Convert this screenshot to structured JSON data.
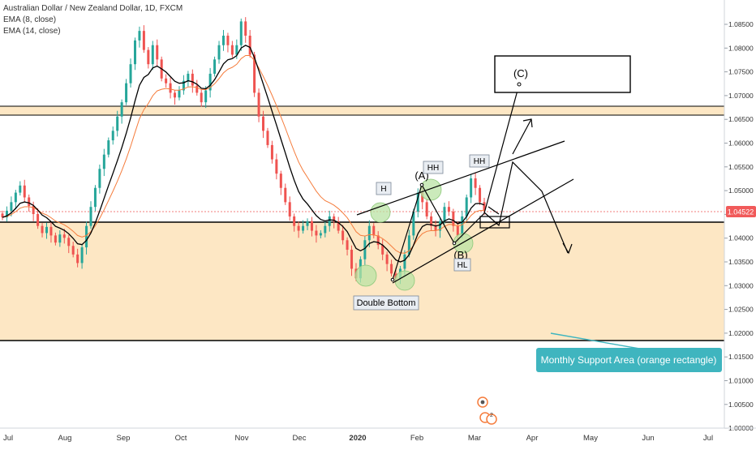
{
  "header": {
    "title": "Australian Dollar / New Zealand Dollar, 1D, FXCM",
    "indicators": [
      "EMA (8, close)",
      "EMA (14, close)"
    ]
  },
  "colors": {
    "bull": "#26a69a",
    "bear": "#ef5350",
    "ema8": "#000000",
    "ema14": "#f57c3c",
    "zone_fill": "#fde7c4",
    "price_badge": "#f15a5a",
    "callout": "#3fb5bf",
    "highlight_green": "#b9e3a4"
  },
  "chart_data": {
    "type": "candlestick",
    "y_ticks": [
      "1.08500",
      "1.08000",
      "1.07500",
      "1.07000",
      "1.06500",
      "1.06000",
      "1.05500",
      "1.05000",
      "1.04500",
      "1.04000",
      "1.03500",
      "1.03000",
      "1.02500",
      "1.02000",
      "1.01500",
      "1.01000",
      "1.00500",
      "1.00000"
    ],
    "x_ticks": [
      "Jul",
      "Aug",
      "Sep",
      "Oct",
      "Nov",
      "Dec",
      "2020",
      "Feb",
      "Mar",
      "Apr",
      "May",
      "Jun",
      "Jul"
    ],
    "ylim": [
      0.9995,
      1.0895
    ],
    "last_price": "1.04522",
    "zones": [
      {
        "name": "resistance-band",
        "from": 1.0655,
        "to": 1.067
      },
      {
        "name": "monthly-support-area",
        "from": 1.0181,
        "to": 1.0425
      }
    ],
    "horizontal_lines": [
      1.0181,
      1.0425,
      1.0655,
      1.067
    ],
    "labels": {
      "double_bottom": "Double Bottom",
      "h": "H",
      "hh1": "HH",
      "hh2": "HH",
      "hl": "HL",
      "wave_a": "(A)",
      "wave_b": "(B)",
      "wave_c": "(C)",
      "callout": "Monthly Support Area (orange rectangle)"
    },
    "daily_closes": [
      1.0438,
      1.0452,
      1.047,
      1.049,
      1.0505,
      1.048,
      1.0462,
      1.0445,
      1.042,
      1.0405,
      1.0418,
      1.04,
      1.0385,
      1.0402,
      1.0395,
      1.0378,
      1.036,
      1.0342,
      1.0375,
      1.042,
      1.046,
      1.05,
      1.054,
      1.057,
      1.06,
      1.062,
      1.065,
      1.068,
      1.072,
      1.076,
      1.081,
      1.083,
      1.079,
      1.076,
      1.08,
      1.077,
      1.073,
      1.072,
      1.07,
      1.069,
      1.0705,
      1.0725,
      1.074,
      1.0715,
      1.07,
      1.068,
      1.0705,
      1.074,
      1.077,
      1.08,
      1.082,
      1.08,
      1.078,
      1.08,
      1.085,
      1.082,
      1.078,
      1.07,
      1.065,
      1.062,
      1.059,
      1.056,
      1.053,
      1.05,
      1.047,
      1.044,
      1.042,
      1.041,
      1.042,
      1.043,
      1.041,
      1.04,
      1.0405,
      1.042,
      1.044,
      1.043,
      1.041,
      1.039,
      1.037,
      1.033,
      1.031,
      1.035,
      1.039,
      1.042,
      1.04,
      1.038,
      1.036,
      1.034,
      1.032,
      1.031,
      1.033,
      1.036,
      1.04,
      1.045,
      1.049,
      1.047,
      1.044,
      1.042,
      1.041,
      1.043,
      1.046,
      1.045,
      1.042,
      1.04,
      1.044,
      1.048,
      1.052,
      1.05,
      1.047,
      1.0452
    ]
  }
}
